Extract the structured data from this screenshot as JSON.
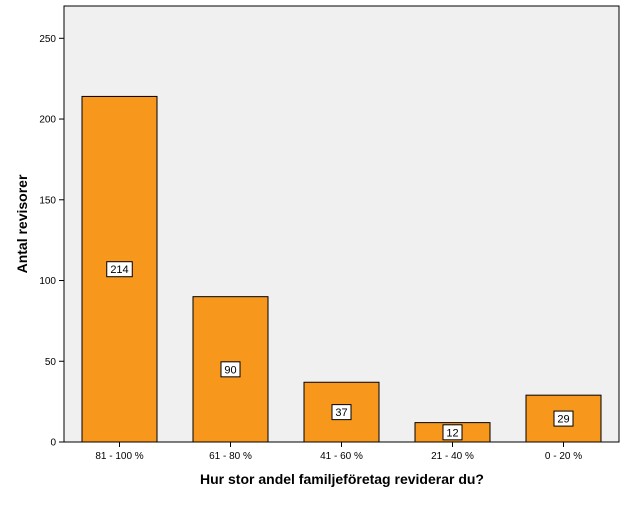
{
  "chart_data": {
    "type": "bar",
    "categories": [
      "81 - 100 %",
      "61 - 80 %",
      "41 - 60 %",
      "21 - 40 %",
      "0 - 20 %"
    ],
    "values": [
      214,
      90,
      37,
      12,
      29
    ],
    "data_labels": [
      "214",
      "90",
      "37",
      "12",
      "29"
    ],
    "title": "",
    "xlabel": "Hur stor andel familjeföretag reviderar du?",
    "ylabel": "Antal revisorer",
    "ylim": [
      0,
      270
    ],
    "yticks": [
      0,
      50,
      100,
      150,
      200,
      250
    ],
    "grid": false,
    "legend": "none",
    "colors": {
      "bar_fill": "#f7981d",
      "bar_stroke": "#000000",
      "plot_background": "#f0f0f0",
      "page_background": "#ffffff",
      "label_box": "#ffffff"
    }
  }
}
